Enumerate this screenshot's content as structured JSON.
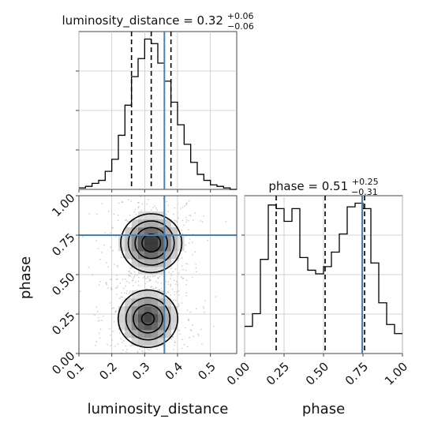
{
  "chart_data": [
    {
      "panel": "luminosity_distance-1d",
      "type": "histogram",
      "title": {
        "base": "luminosity_distance = 0.32",
        "plus": "+0.06",
        "minus": "−0.06"
      },
      "xlim": [
        0.1,
        0.58
      ],
      "bins": [
        0.1,
        0.12,
        0.14,
        0.16,
        0.18,
        0.2,
        0.22,
        0.24,
        0.26,
        0.28,
        0.3,
        0.32,
        0.34,
        0.36,
        0.38,
        0.4,
        0.42,
        0.44,
        0.46,
        0.48,
        0.5,
        0.52,
        0.54,
        0.56,
        0.58
      ],
      "heights": [
        0.01,
        0.02,
        0.04,
        0.06,
        0.12,
        0.2,
        0.36,
        0.56,
        0.75,
        0.87,
        1.0,
        0.97,
        0.84,
        0.72,
        0.58,
        0.43,
        0.3,
        0.18,
        0.1,
        0.06,
        0.03,
        0.02,
        0.01,
        0.0
      ],
      "quantiles": [
        0.26,
        0.32,
        0.38
      ],
      "truth": 0.36,
      "grid": true
    },
    {
      "panel": "phase-1d",
      "type": "histogram",
      "title": {
        "base": "phase = 0.51",
        "plus": "+0.25",
        "minus": "−0.31"
      },
      "xlim": [
        0.0,
        1.0
      ],
      "xticks": [
        "0.00",
        "0.25",
        "0.50",
        "0.75",
        "1.00"
      ],
      "xlabel": "phase",
      "bins": [
        0.0,
        0.05,
        0.1,
        0.15,
        0.2,
        0.25,
        0.3,
        0.35,
        0.4,
        0.45,
        0.5,
        0.55,
        0.6,
        0.65,
        0.7,
        0.75,
        0.8,
        0.85,
        0.9,
        0.95,
        1.0
      ],
      "heights": [
        0.15,
        0.22,
        0.52,
        0.82,
        0.8,
        0.73,
        0.8,
        0.53,
        0.46,
        0.44,
        0.48,
        0.56,
        0.66,
        0.81,
        0.83,
        0.8,
        0.5,
        0.28,
        0.16,
        0.11
      ],
      "quantiles": [
        0.2,
        0.51,
        0.76
      ],
      "truth": 0.745,
      "grid": true
    },
    {
      "panel": "luminosity_distance-phase-2d",
      "type": "heatmap",
      "xlabel": "luminosity_distance",
      "ylabel": "phase",
      "xlim": [
        0.1,
        0.58
      ],
      "ylim": [
        0.0,
        1.0
      ],
      "xticks": [
        "0.1",
        "0.2",
        "0.3",
        "0.4",
        "0.5"
      ],
      "yticks": [
        "0.00",
        "0.25",
        "0.50",
        "0.75",
        "1.00"
      ],
      "truth": {
        "x": 0.36,
        "y": 0.75
      },
      "modes": [
        {
          "x": 0.32,
          "y": 0.7,
          "sx": 0.045,
          "sy": 0.09,
          "w": 1.0
        },
        {
          "x": 0.31,
          "y": 0.22,
          "sx": 0.045,
          "sy": 0.09,
          "w": 0.9
        }
      ],
      "grid": true
    }
  ]
}
